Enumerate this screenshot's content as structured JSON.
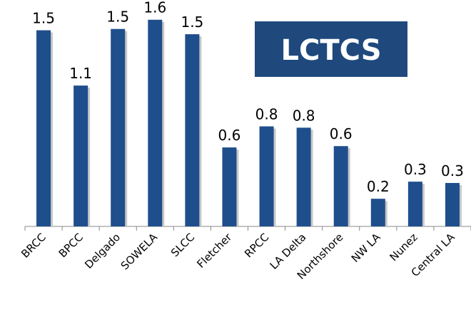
{
  "chart_data": {
    "type": "bar",
    "title": "LCTCS",
    "categories": [
      "BRCC",
      "BPCC",
      "Delgado",
      "SOWELA",
      "SLCC",
      "Fletcher",
      "RPCC",
      "LA Delta",
      "Northshore",
      "NW LA",
      "Nunez",
      "Central LA"
    ],
    "values": [
      1.49,
      1.07,
      1.5,
      1.57,
      1.46,
      0.6,
      0.76,
      0.75,
      0.61,
      0.21,
      0.34,
      0.33
    ],
    "value_labels": [
      "1.5",
      "1.1",
      "1.5",
      "1.6",
      "1.5",
      "0.6",
      "0.8",
      "0.8",
      "0.6",
      "0.2",
      "0.3",
      "0.3"
    ],
    "color": "#1f4e8c",
    "ylim": [
      0,
      1.72
    ]
  }
}
